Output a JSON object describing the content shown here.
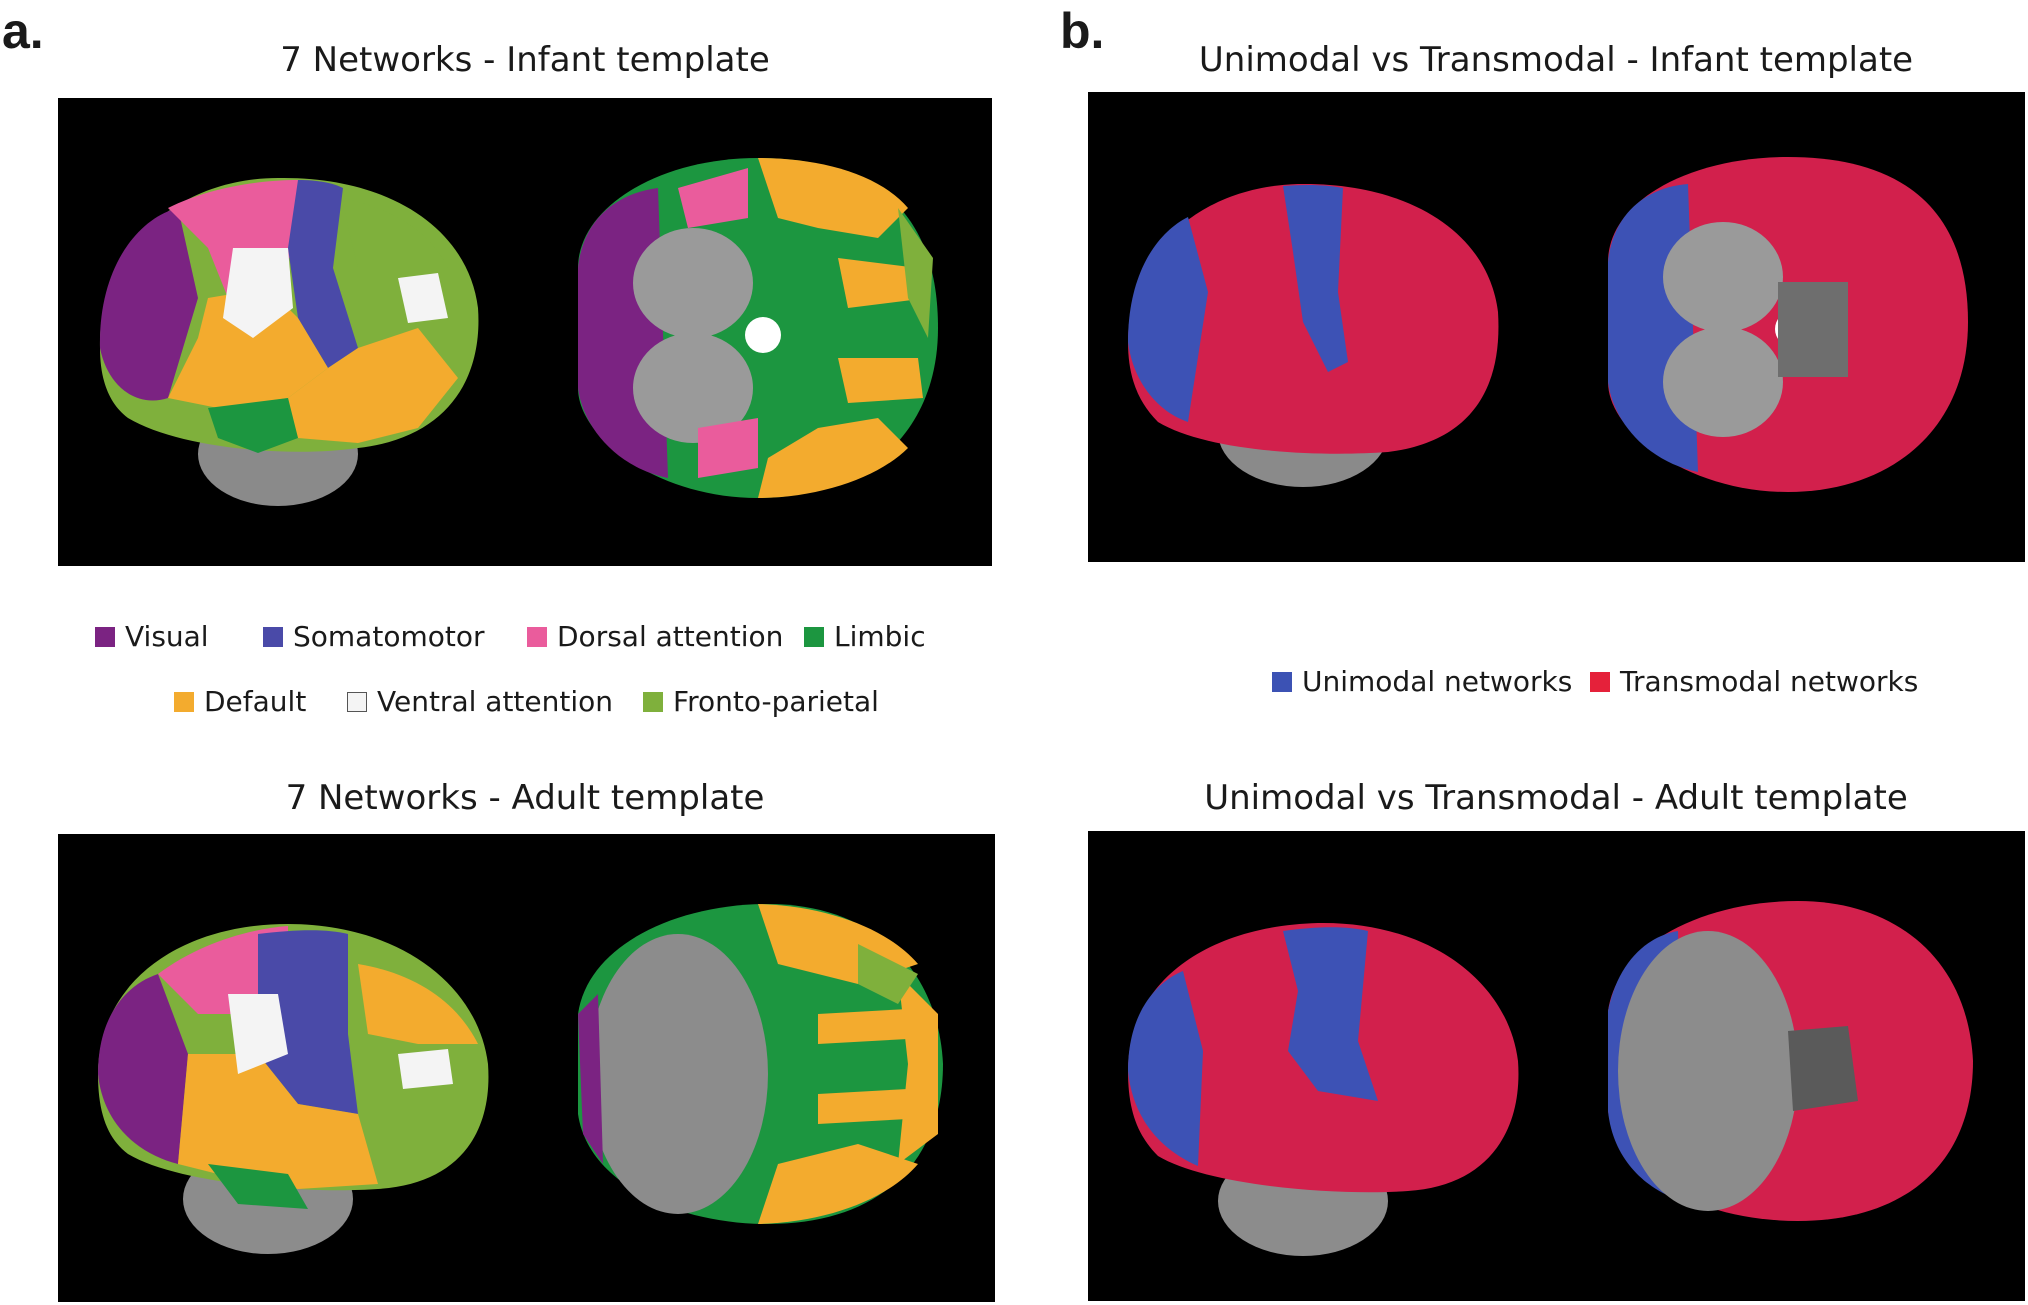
{
  "panels": {
    "a": {
      "letter": "a.",
      "top_title": "7 Networks - Infant template",
      "bottom_title": "7 Networks - Adult template",
      "legend": [
        {
          "label": "Visual",
          "color": "#7b2382"
        },
        {
          "label": "Somatomotor",
          "color": "#4a4aa8"
        },
        {
          "label": "Dorsal attention",
          "color": "#ea5c9c"
        },
        {
          "label": "Limbic",
          "color": "#1c9640"
        },
        {
          "label": "Default",
          "color": "#f3ab2e"
        },
        {
          "label": "Ventral attention",
          "color": "#f4f4f4"
        },
        {
          "label": "Fronto-parietal",
          "color": "#7fb03c"
        }
      ]
    },
    "b": {
      "letter": "b.",
      "top_title": "Unimodal vs Transmodal - Infant template",
      "bottom_title": "Unimodal vs Transmodal - Adult template",
      "legend": [
        {
          "label": "Unimodal networks",
          "color": "#3c52b4"
        },
        {
          "label": "Transmodal networks",
          "color": "#e5213a"
        }
      ]
    }
  },
  "colors": {
    "background": "#000000",
    "brain_gray": "#8c8c8c",
    "unimodal_fill": "#3d52b5",
    "transmodal_fill": "#d2204c"
  }
}
